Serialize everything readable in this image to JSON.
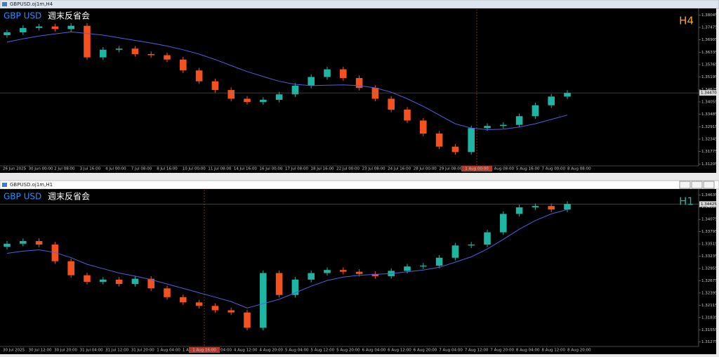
{
  "chart_data": [
    {
      "type": "candlestick",
      "window_title": "GBPUSD.oj1m,H4",
      "symbol": "GBP USD",
      "subtitle": "週末反省会",
      "timeframe": "H4",
      "symbol_color": "#1e90ff",
      "timeframe_color": "#f5a623",
      "up_color": "#1fb5a3",
      "down_color": "#f4511e",
      "ylim": [
        1.3115,
        1.3825
      ],
      "yticks": [
        1.38045,
        1.37475,
        1.36905,
        1.36335,
        1.35765,
        1.35195,
        1.34625,
        1.34055,
        1.33485,
        1.32915,
        1.32345,
        1.31775,
        1.31205
      ],
      "last_price": {
        "value": 1.3447,
        "label": "1.34470"
      },
      "ohlc": [
        [
          1.3712,
          1.3737,
          1.37,
          1.3725
        ],
        [
          1.3725,
          1.3757,
          1.3713,
          1.3745
        ],
        [
          1.3745,
          1.3764,
          1.3733,
          1.3752
        ],
        [
          1.3752,
          1.3764,
          1.3728,
          1.374
        ],
        [
          1.374,
          1.3767,
          1.3728,
          1.3755
        ],
        [
          1.3755,
          1.3767,
          1.3598,
          1.361
        ],
        [
          1.361,
          1.3657,
          1.3598,
          1.3645
        ],
        [
          1.3645,
          1.3662,
          1.3633,
          1.365
        ],
        [
          1.365,
          1.3662,
          1.3613,
          1.3625
        ],
        [
          1.3625,
          1.3637,
          1.3608,
          1.362
        ],
        [
          1.362,
          1.3632,
          1.3588,
          1.36
        ],
        [
          1.36,
          1.3612,
          1.3538,
          1.355
        ],
        [
          1.355,
          1.3562,
          1.3488,
          1.35
        ],
        [
          1.35,
          1.3512,
          1.3448,
          1.346
        ],
        [
          1.346,
          1.3472,
          1.3408,
          1.342
        ],
        [
          1.342,
          1.3432,
          1.3393,
          1.3405
        ],
        [
          1.3405,
          1.3427,
          1.3393,
          1.3415
        ],
        [
          1.3415,
          1.3452,
          1.3403,
          1.344
        ],
        [
          1.344,
          1.3492,
          1.3428,
          1.348
        ],
        [
          1.348,
          1.3532,
          1.3468,
          1.352
        ],
        [
          1.352,
          1.3567,
          1.3508,
          1.3555
        ],
        [
          1.3555,
          1.3567,
          1.3503,
          1.3515
        ],
        [
          1.3515,
          1.3527,
          1.3458,
          1.347
        ],
        [
          1.347,
          1.3482,
          1.3408,
          1.342
        ],
        [
          1.342,
          1.3432,
          1.3358,
          1.337
        ],
        [
          1.337,
          1.3382,
          1.3308,
          1.332
        ],
        [
          1.332,
          1.3332,
          1.3248,
          1.326
        ],
        [
          1.326,
          1.3272,
          1.3188,
          1.32
        ],
        [
          1.32,
          1.3212,
          1.3163,
          1.3175
        ],
        [
          1.3175,
          1.3297,
          1.3163,
          1.3285
        ],
        [
          1.3285,
          1.3307,
          1.3273,
          1.3295
        ],
        [
          1.3295,
          1.3312,
          1.3283,
          1.33
        ],
        [
          1.33,
          1.3352,
          1.3288,
          1.334
        ],
        [
          1.334,
          1.3402,
          1.3328,
          1.339
        ],
        [
          1.339,
          1.3442,
          1.3378,
          1.343
        ],
        [
          1.343,
          1.3459,
          1.3418,
          1.3447
        ]
      ],
      "moving_average": [
        1.368,
        1.3695,
        1.3708,
        1.3718,
        1.3727,
        1.372,
        1.3712,
        1.37,
        1.3688,
        1.3676,
        1.3662,
        1.3645,
        1.3625,
        1.36,
        1.3572,
        1.3545,
        1.3522,
        1.35,
        1.3486,
        1.348,
        1.3482,
        1.3484,
        1.348,
        1.347,
        1.345,
        1.342,
        1.3385,
        1.3345,
        1.3305,
        1.3285,
        1.3278,
        1.328,
        1.329,
        1.3305,
        1.3325,
        1.3345
      ],
      "ma_color": "#4f5fe0",
      "time_labels": [
        "26 Jun 2025",
        "30 Jun 00:00",
        "2 Jul 08:00",
        "3 Jul 16:00",
        "4 Jul 00:00",
        "7 Jul 08:00",
        "8 Jul 16:00",
        "10 Jul 00:00",
        "11 Jul 08:00",
        "14 Jul 16:00",
        "16 Jul 00:00",
        "17 Jul 08:00",
        "18 Jul 16:00",
        "22 Jul 00:00",
        "23 Jul 08:00",
        "24 Jul 16:00",
        "28 Jul 00:00",
        "29 Jul 08:00",
        "30 Jul 16:00",
        "4 Aug 08:00",
        "5 Aug 16:00",
        "7 Aug 00:00",
        "8 Aug 08:00"
      ],
      "crosshair_time": "1 Aug 00:00"
    },
    {
      "type": "candlestick",
      "window_title": "GBPUSD.oj1m,H1",
      "symbol": "GBP USD",
      "subtitle": "週末反省会",
      "timeframe": "H1",
      "symbol_color": "#1e90ff",
      "timeframe_color": "#1fb5a3",
      "up_color": "#1fb5a3",
      "down_color": "#f4511e",
      "ylim": [
        1.3119,
        1.3472
      ],
      "yticks": [
        1.34635,
        1.34355,
        1.34075,
        1.33795,
        1.33515,
        1.33235,
        1.32955,
        1.32675,
        1.32395,
        1.32115,
        1.31835,
        1.31555,
        1.31275
      ],
      "last_price": 1.34425,
      "ohlc": [
        [
          1.3345,
          1.3358,
          1.3339,
          1.3352
        ],
        [
          1.3352,
          1.3364,
          1.3346,
          1.3358
        ],
        [
          1.3358,
          1.3364,
          1.3344,
          1.335
        ],
        [
          1.335,
          1.3356,
          1.3306,
          1.3312
        ],
        [
          1.3312,
          1.3318,
          1.3274,
          1.328
        ],
        [
          1.328,
          1.3286,
          1.3259,
          1.3265
        ],
        [
          1.3265,
          1.3276,
          1.3259,
          1.327
        ],
        [
          1.327,
          1.3276,
          1.3254,
          1.326
        ],
        [
          1.326,
          1.3278,
          1.3254,
          1.3272
        ],
        [
          1.3272,
          1.3278,
          1.3244,
          1.325
        ],
        [
          1.325,
          1.3256,
          1.3224,
          1.323
        ],
        [
          1.323,
          1.3236,
          1.3212,
          1.3218
        ],
        [
          1.3218,
          1.3224,
          1.3204,
          1.321
        ],
        [
          1.321,
          1.3216,
          1.3194,
          1.32
        ],
        [
          1.32,
          1.3206,
          1.3189,
          1.3195
        ],
        [
          1.3195,
          1.3201,
          1.3154,
          1.316
        ],
        [
          1.316,
          1.3291,
          1.3154,
          1.3285
        ],
        [
          1.3285,
          1.3291,
          1.3229,
          1.3235
        ],
        [
          1.3235,
          1.3276,
          1.3229,
          1.327
        ],
        [
          1.327,
          1.3291,
          1.3264,
          1.3285
        ],
        [
          1.3285,
          1.3298,
          1.3279,
          1.3292
        ],
        [
          1.3292,
          1.3298,
          1.3282,
          1.3288
        ],
        [
          1.3288,
          1.3294,
          1.3277,
          1.3283
        ],
        [
          1.3283,
          1.3289,
          1.3272,
          1.3278
        ],
        [
          1.3278,
          1.3296,
          1.3272,
          1.329
        ],
        [
          1.329,
          1.3306,
          1.3284,
          1.33
        ],
        [
          1.33,
          1.3308,
          1.3294,
          1.3302
        ],
        [
          1.3302,
          1.3326,
          1.3296,
          1.332
        ],
        [
          1.332,
          1.3354,
          1.3314,
          1.3348
        ],
        [
          1.3348,
          1.3356,
          1.3342,
          1.335
        ],
        [
          1.335,
          1.3384,
          1.3344,
          1.3378
        ],
        [
          1.3378,
          1.3426,
          1.3372,
          1.342
        ],
        [
          1.342,
          1.3441,
          1.3414,
          1.3435
        ],
        [
          1.3435,
          1.3444,
          1.3429,
          1.3438
        ],
        [
          1.3438,
          1.3444,
          1.3424,
          1.343
        ],
        [
          1.343,
          1.3449,
          1.3424,
          1.3443
        ]
      ],
      "moving_average": [
        1.333,
        1.3335,
        1.3338,
        1.3332,
        1.332,
        1.3305,
        1.3295,
        1.3285,
        1.3278,
        1.327,
        1.326,
        1.325,
        1.324,
        1.323,
        1.322,
        1.3205,
        1.3215,
        1.3225,
        1.324,
        1.3255,
        1.3268,
        1.3276,
        1.328,
        1.3282,
        1.3284,
        1.3288,
        1.3292,
        1.3298,
        1.331,
        1.3322,
        1.334,
        1.3362,
        1.3385,
        1.3405,
        1.342,
        1.343
      ],
      "ma_color": "#4f5fe0",
      "time_labels": [
        "30 Jul 2025",
        "30 Jul 12:00",
        "30 Jul 20:00",
        "31 Jul 04:00",
        "31 Jul 12:00",
        "31 Jul 20:00",
        "1 Aug 04:00",
        "1 Aug 12:00",
        "4 Aug 04:00",
        "4 Aug 12:00",
        "4 Aug 20:00",
        "5 Aug 04:00",
        "5 Aug 12:00",
        "5 Aug 20:00",
        "6 Aug 04:00",
        "6 Aug 12:00",
        "6 Aug 20:00",
        "7 Aug 04:00",
        "7 Aug 12:00",
        "7 Aug 20:00",
        "8 Aug 04:00",
        "8 Aug 12:00",
        "8 Aug 20:00"
      ],
      "crosshair_time": "1 Aug 16:00"
    }
  ]
}
